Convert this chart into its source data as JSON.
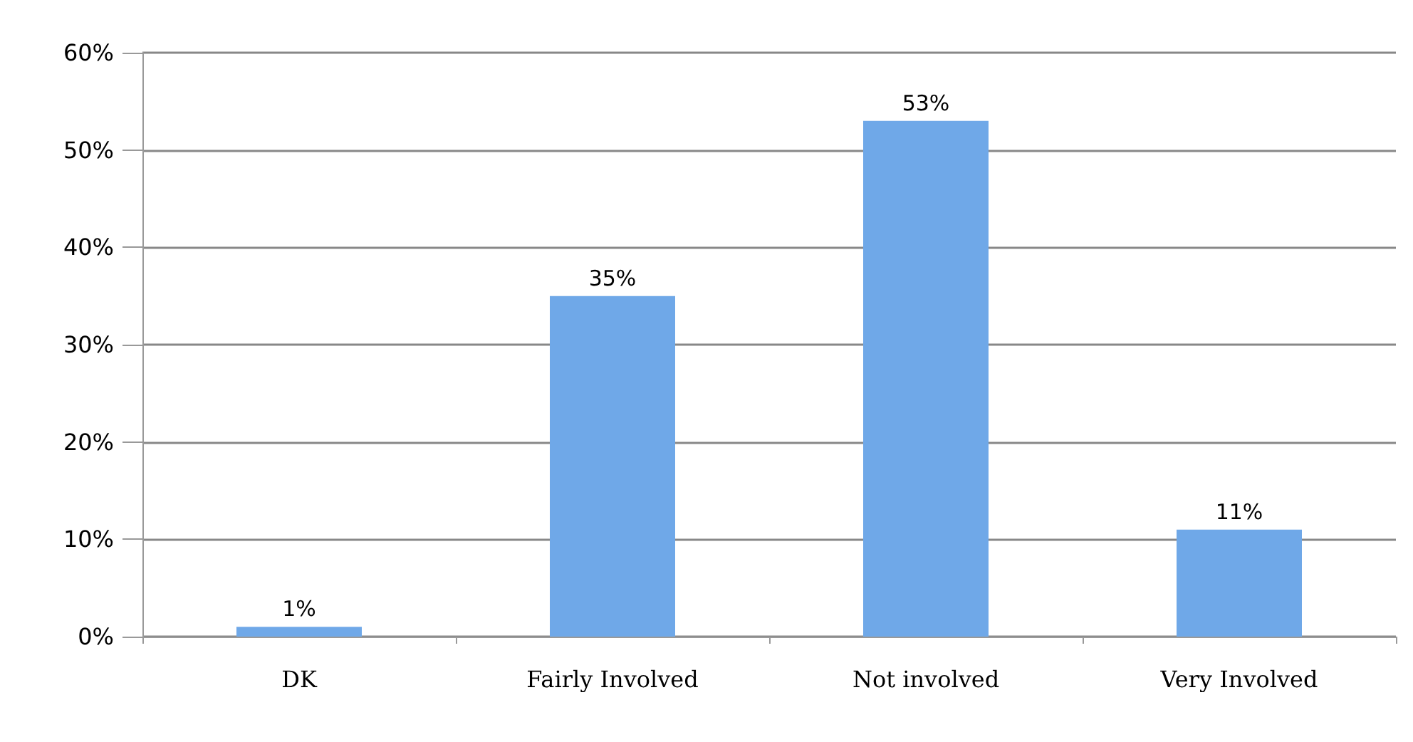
{
  "chart_data": {
    "type": "bar",
    "categories": [
      "DK",
      "Fairly Involved",
      "Not involved",
      "Very Involved"
    ],
    "values": [
      1,
      35,
      53,
      11
    ],
    "value_labels": [
      "1%",
      "35%",
      "53%",
      "11%"
    ],
    "color": "#6fa8e8",
    "ylim": [
      0,
      60
    ],
    "yticks": [
      {
        "value": 0,
        "label": "0%"
      },
      {
        "value": 10,
        "label": "10%"
      },
      {
        "value": 20,
        "label": "20%"
      },
      {
        "value": 30,
        "label": "30%"
      },
      {
        "value": 40,
        "label": "40%"
      },
      {
        "value": 50,
        "label": "50%"
      },
      {
        "value": 60,
        "label": "60%"
      }
    ],
    "grid": "y"
  }
}
